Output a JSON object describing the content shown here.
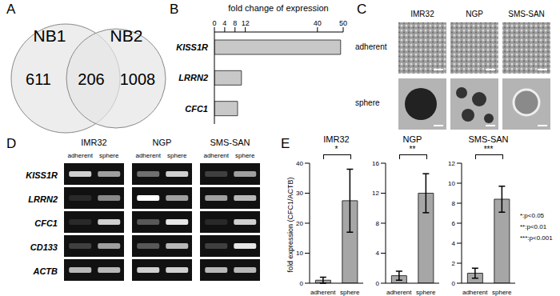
{
  "chart_data": [
    {
      "type": "venn",
      "panel": "A",
      "sets": [
        "NB1",
        "NB2"
      ],
      "values": [
        611,
        206,
        1008
      ]
    },
    {
      "type": "bar",
      "panel": "B",
      "orientation": "horizontal",
      "xlabel": "fold change of expression",
      "categories": [
        "KISS1R",
        "LRRN2",
        "CFC1"
      ],
      "values": [
        49,
        10.5,
        9
      ],
      "xlim": [
        0,
        50
      ],
      "xticks": [
        0,
        4,
        8,
        12,
        40,
        50
      ],
      "color": "#c8c8c8"
    },
    {
      "type": "bar",
      "panel": "E",
      "title": "IMR32",
      "ylabel": "fold expression (CFC1/ACTB)",
      "categories": [
        "adherent",
        "sphere"
      ],
      "values": [
        1,
        27.5
      ],
      "errors": [
        1,
        10.5
      ],
      "ylim": [
        0,
        40
      ],
      "yticks": [
        0,
        10,
        20,
        30,
        40
      ],
      "annotation": "*",
      "color": "#a6a6a6"
    },
    {
      "type": "bar",
      "title": "NGP",
      "categories": [
        "adherent",
        "sphere"
      ],
      "values": [
        1,
        12
      ],
      "errors": [
        0.6,
        2.6
      ],
      "ylim": [
        0,
        16
      ],
      "yticks": [
        0,
        4,
        8,
        12,
        16
      ],
      "annotation": "**",
      "color": "#a6a6a6"
    },
    {
      "type": "bar",
      "title": "SMS-SAN",
      "categories": [
        "adherent",
        "sphere"
      ],
      "values": [
        1,
        8.4
      ],
      "errors": [
        0.5,
        1.3
      ],
      "ylim": [
        0,
        12
      ],
      "yticks": [
        0,
        2,
        4,
        6,
        8,
        10,
        12
      ],
      "annotation": "***",
      "color": "#a6a6a6"
    }
  ],
  "micrographs": {
    "panel": "C",
    "columns": [
      "IMR32",
      "NGP",
      "SMS-SAN"
    ],
    "rows": [
      "adherent",
      "sphere"
    ]
  },
  "gel": {
    "panel": "D",
    "columns": [
      "IMR32",
      "NGP",
      "SMS-SAN"
    ],
    "conditions": [
      "adherent",
      "sphere"
    ],
    "genes": [
      "KISS1R",
      "LRRN2",
      "CFC1",
      "CD133",
      "ACTB"
    ],
    "band_intensity": [
      [
        0.8,
        0.6,
        0.4,
        0.8,
        0.2,
        0.6
      ],
      [
        0.1,
        0.5,
        1.0,
        0.6,
        0.6,
        0.7
      ],
      [
        0.1,
        0.8,
        0.3,
        0.9,
        0.1,
        0.8
      ],
      [
        0.2,
        0.6,
        0.3,
        0.7,
        0.2,
        0.9
      ],
      [
        0.7,
        0.7,
        0.8,
        0.8,
        0.7,
        0.7
      ]
    ]
  },
  "significance_legend": [
    "*:p<0.05",
    "**:p<0.01",
    "***:p<0.001"
  ]
}
